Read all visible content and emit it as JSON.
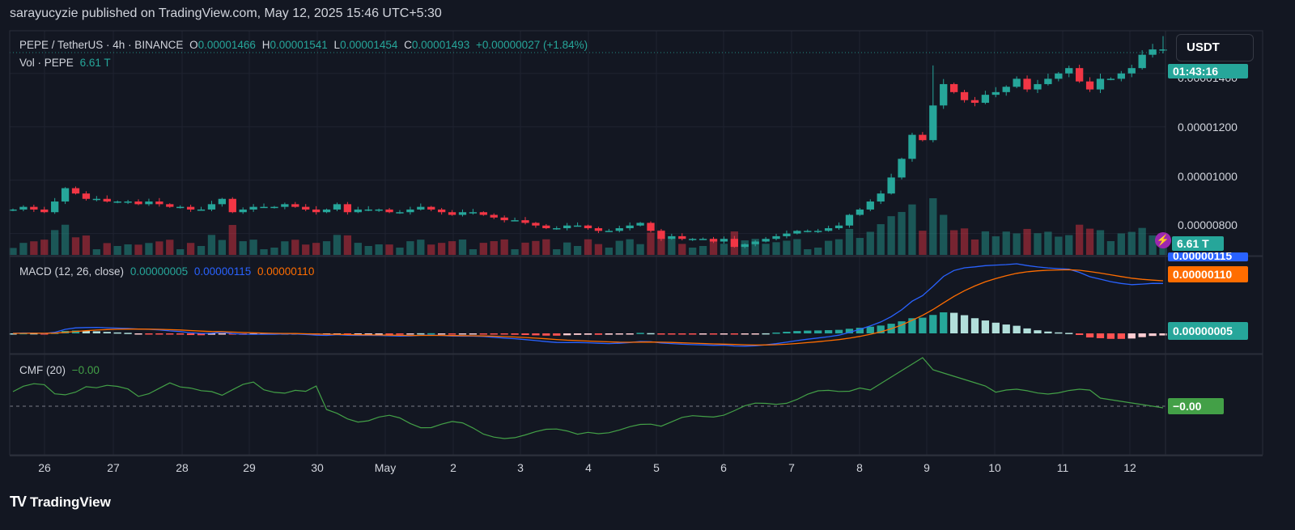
{
  "header": {
    "publish_line": "sarayucyzie published on TradingView.com, May 12, 2025 15:46 UTC+5:30"
  },
  "legend": {
    "symbol": "PEPE / TetherUS · 4h · BINANCE",
    "o_label": "O",
    "o_value": "0.00001466",
    "h_label": "H",
    "h_value": "0.00001541",
    "l_label": "L",
    "l_value": "0.00001454",
    "c_label": "C",
    "c_value": "0.00001493",
    "change": "+0.00000027 (+1.84%)",
    "vol_label": "Vol · PEPE",
    "vol_value": "6.61 T"
  },
  "macd_legend": {
    "label": "MACD (12, 26, close)",
    "hist": "0.00000005",
    "macd": "0.00000115",
    "signal": "0.00000110"
  },
  "cmf_legend": {
    "label": "CMF (20)",
    "value": "−0.00"
  },
  "price_axis": {
    "currency": "USDT",
    "ticks": [
      "0.00001400",
      "0.00001200",
      "0.00001000",
      "0.00000800"
    ],
    "countdown": "01:43:16",
    "vol_tag": "6.61 T",
    "macd_tag": "0.00000115",
    "signal_tag": "0.00000110",
    "hist_tag": "0.00000005",
    "cmf_tag": "−0.00"
  },
  "time_axis": {
    "labels": [
      "26",
      "27",
      "28",
      "29",
      "30",
      "May",
      "2",
      "3",
      "4",
      "5",
      "6",
      "7",
      "8",
      "9",
      "10",
      "11",
      "12"
    ]
  },
  "footer": {
    "brand": "TradingView",
    "logo": "TV"
  },
  "colors": {
    "up": "#26a69a",
    "down": "#f23645",
    "macd": "#2962ff",
    "signal": "#ff6d00",
    "cmf": "#43a047",
    "bg": "#131722",
    "grid": "#1f2330"
  },
  "chart_data": {
    "type": "candlestick",
    "symbol": "PEPE / TetherUS",
    "interval": "4h",
    "price_range": [
      7.2e-06,
      1.56e-05
    ],
    "closes": [
      8.9e-06,
      9e-06,
      8.9e-06,
      8.8e-06,
      9.2e-06,
      9.7e-06,
      9.5e-06,
      9.3e-06,
      9.3e-06,
      9.2e-06,
      9.2e-06,
      9.2e-06,
      9.1e-06,
      9.2e-06,
      9.1e-06,
      9e-06,
      9e-06,
      8.9e-06,
      8.9e-06,
      9.1e-06,
      9.3e-06,
      8.8e-06,
      8.9e-06,
      9e-06,
      9e-06,
      9e-06,
      9.1e-06,
      9e-06,
      8.9e-06,
      8.8e-06,
      8.9e-06,
      9.1e-06,
      8.8e-06,
      8.9e-06,
      8.9e-06,
      8.9e-06,
      8.8e-06,
      8.8e-06,
      8.9e-06,
      9e-06,
      8.9e-06,
      8.8e-06,
      8.7e-06,
      8.8e-06,
      8.8e-06,
      8.7e-06,
      8.6e-06,
      8.5e-06,
      8.5e-06,
      8.4e-06,
      8.3e-06,
      8.2e-06,
      8.2e-06,
      8.3e-06,
      8.3e-06,
      8.2e-06,
      8.1e-06,
      8.1e-06,
      8.2e-06,
      8.3e-06,
      8.4e-06,
      8.1e-06,
      7.8e-06,
      7.9e-06,
      7.8e-06,
      7.8e-06,
      7.8e-06,
      7.7e-06,
      7.8e-06,
      7.5e-06,
      7.6e-06,
      7.7e-06,
      7.8e-06,
      7.9e-06,
      8e-06,
      8.1e-06,
      8.1e-06,
      8.1e-06,
      8.2e-06,
      8.3e-06,
      8.7e-06,
      8.9e-06,
      9.2e-06,
      9.5e-06,
      1.01e-05,
      1.08e-05,
      1.17e-05,
      1.15e-05,
      1.28e-05,
      1.36e-05,
      1.33e-05,
      1.3e-05,
      1.29e-05,
      1.32e-05,
      1.33e-05,
      1.35e-05,
      1.38e-05,
      1.34e-05,
      1.36e-05,
      1.38e-05,
      1.4e-05,
      1.42e-05,
      1.37e-05,
      1.34e-05,
      1.38e-05,
      1.38e-05,
      1.4e-05,
      1.42e-05,
      1.47e-05,
      1.49e-05,
      1.49e-05
    ]
  }
}
